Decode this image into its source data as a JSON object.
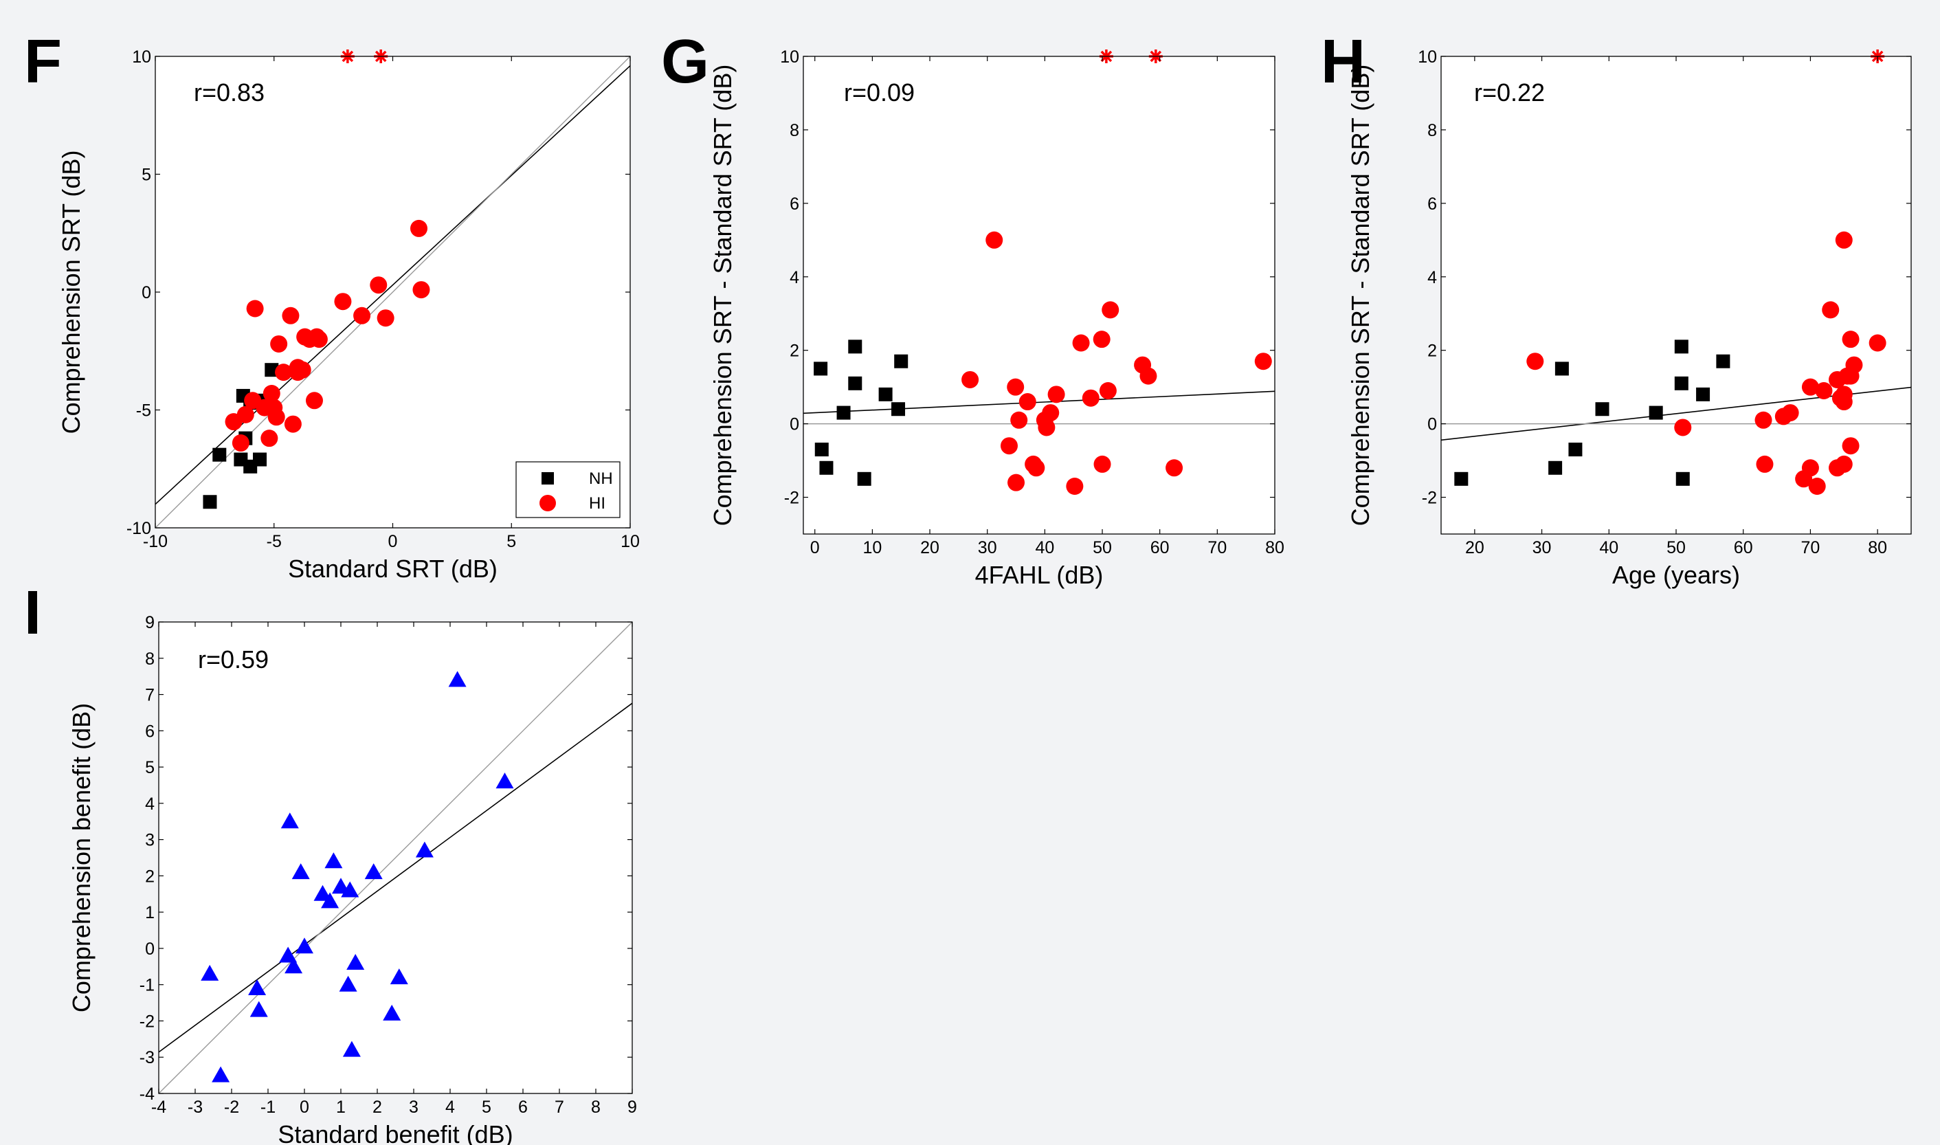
{
  "chart_data": [
    {
      "panel": "F",
      "type": "scatter",
      "xlabel": "Standard SRT (dB)",
      "ylabel": "Comprehension SRT (dB)",
      "xlim": [
        -10,
        10
      ],
      "ylim": [
        -10,
        10
      ],
      "xticks": [
        -10,
        -5,
        0,
        5,
        10
      ],
      "yticks": [
        -10,
        -5,
        0,
        5,
        10
      ],
      "annotation": "r=0.83",
      "legend": {
        "placement": "bottom-right",
        "entries": [
          "NH",
          "HI"
        ]
      },
      "colors": {
        "NH": "#000000",
        "HI": "#ff0000",
        "marker_star": "#ff0000"
      },
      "series": [
        {
          "name": "NH",
          "marker": "square",
          "color": "#000000",
          "x": [
            -7.7,
            -7.3,
            -6.4,
            -6.3,
            -6.2,
            -6.0,
            -6.0,
            -5.8,
            -5.6,
            -5.4,
            -5.1
          ],
          "y": [
            -8.9,
            -6.9,
            -7.1,
            -4.4,
            -6.2,
            -4.6,
            -7.4,
            -4.7,
            -7.1,
            -4.6,
            -3.3
          ]
        },
        {
          "name": "HI",
          "marker": "circle",
          "color": "#ff0000",
          "x": [
            -6.7,
            -6.4,
            -6.2,
            -5.9,
            -5.8,
            -5.4,
            -5.2,
            -5.1,
            -5.0,
            -4.9,
            -4.8,
            -4.6,
            -4.3,
            -4.2,
            -4.0,
            -4.0,
            -3.8,
            -3.7,
            -3.5,
            -3.3,
            -3.2,
            -3.1,
            -2.1,
            -1.3,
            -0.6,
            -0.3,
            1.1,
            1.2
          ],
          "y": [
            -5.5,
            -6.4,
            -5.2,
            -4.6,
            -0.7,
            -4.9,
            -6.2,
            -4.3,
            -4.9,
            -5.3,
            -2.2,
            -3.4,
            -1.0,
            -5.6,
            -3.4,
            -3.2,
            -3.3,
            -1.9,
            -2.0,
            -4.6,
            -1.9,
            -2.0,
            -0.4,
            -1.0,
            0.3,
            -1.1,
            2.7,
            0.1
          ]
        }
      ],
      "offscale_x": [
        -1.9,
        -0.5
      ],
      "lines": [
        {
          "kind": "regression",
          "slope": 0.93,
          "intercept": 0.3,
          "color": "#000000"
        },
        {
          "kind": "identity",
          "slope": 1.0,
          "intercept": 0.0,
          "color": "#9a9a9a"
        }
      ]
    },
    {
      "panel": "G",
      "type": "scatter",
      "xlabel": "4FAHL (dB)",
      "ylabel": "Comprehension SRT - Standard SRT (dB)",
      "xlim": [
        -2,
        80
      ],
      "ylim": [
        -3,
        10
      ],
      "xticks": [
        0,
        10,
        20,
        30,
        40,
        50,
        60,
        70,
        80
      ],
      "yticks": [
        -2,
        0,
        2,
        4,
        6,
        8,
        10
      ],
      "annotation": "r=0.09",
      "colors": {
        "NH": "#000000",
        "HI": "#ff0000",
        "marker_star": "#ff0000"
      },
      "series": [
        {
          "name": "NH",
          "marker": "square",
          "color": "#000000",
          "x": [
            1.0,
            1.2,
            2.0,
            5.0,
            7.0,
            7.0,
            8.6,
            12.3,
            14.5,
            15.0
          ],
          "y": [
            1.5,
            -0.7,
            -1.2,
            0.3,
            2.1,
            1.1,
            -1.5,
            0.8,
            0.4,
            1.7
          ]
        },
        {
          "name": "HI",
          "marker": "circle",
          "color": "#ff0000",
          "x": [
            27.0,
            31.2,
            33.8,
            34.9,
            35.0,
            35.5,
            37.0,
            38.0,
            38.5,
            40.0,
            40.3,
            41.0,
            42.0,
            45.2,
            46.3,
            48.0,
            49.9,
            50.0,
            51.0,
            51.4,
            57.0,
            58.0,
            62.5,
            78.0
          ],
          "y": [
            1.2,
            5.0,
            -0.6,
            1.0,
            -1.6,
            0.1,
            0.6,
            -1.1,
            -1.2,
            0.1,
            -0.1,
            0.3,
            0.8,
            -1.7,
            2.2,
            0.7,
            2.3,
            -1.1,
            0.9,
            3.1,
            1.6,
            1.3,
            -1.2,
            1.7
          ]
        }
      ],
      "offscale_x": [
        50.7,
        59.3
      ],
      "lines": [
        {
          "kind": "regression",
          "slope": 0.0073,
          "intercept": 0.3,
          "color": "#000000"
        },
        {
          "kind": "zero",
          "slope": 0.0,
          "intercept": 0.0,
          "color": "#9a9a9a"
        }
      ]
    },
    {
      "panel": "H",
      "type": "scatter",
      "xlabel": "Age (years)",
      "ylabel": "Comprehension SRT - Standard SRT (dB)",
      "xlim": [
        15,
        85
      ],
      "ylim": [
        -3,
        10
      ],
      "xticks": [
        20,
        30,
        40,
        50,
        60,
        70,
        80
      ],
      "yticks": [
        -2,
        0,
        2,
        4,
        6,
        8,
        10
      ],
      "annotation": "r=0.22",
      "colors": {
        "NH": "#000000",
        "HI": "#ff0000",
        "marker_star": "#ff0000"
      },
      "series": [
        {
          "name": "NH",
          "marker": "square",
          "color": "#000000",
          "x": [
            18.0,
            32.0,
            33.0,
            35.0,
            39.0,
            47.0,
            50.8,
            50.8,
            51.0,
            54.0,
            57.0
          ],
          "y": [
            -1.5,
            -1.2,
            1.5,
            -0.7,
            0.4,
            0.3,
            2.1,
            1.1,
            -1.5,
            0.8,
            1.7
          ]
        },
        {
          "name": "HI",
          "marker": "circle",
          "color": "#ff0000",
          "x": [
            29.0,
            51.0,
            63.0,
            63.2,
            66.0,
            67.0,
            69.0,
            70.0,
            70.0,
            71.0,
            72.0,
            73.0,
            74.0,
            74.0,
            74.5,
            75.0,
            75.0,
            75.0,
            75.0,
            75.5,
            76.0,
            76.0,
            76.0,
            76.5,
            80.0
          ],
          "y": [
            1.7,
            -0.1,
            0.1,
            -1.1,
            0.2,
            0.3,
            -1.5,
            1.0,
            -1.2,
            -1.7,
            0.9,
            3.1,
            1.2,
            -1.2,
            0.7,
            0.8,
            0.6,
            -1.1,
            5.0,
            1.3,
            2.3,
            1.3,
            -0.6,
            1.6,
            2.2
          ]
        }
      ],
      "offscale_x": [
        80.0
      ],
      "lines": [
        {
          "kind": "regression",
          "slope": 0.0205,
          "intercept": -0.75,
          "color": "#000000"
        },
        {
          "kind": "zero",
          "slope": 0.0,
          "intercept": 0.0,
          "color": "#9a9a9a"
        }
      ]
    },
    {
      "panel": "I",
      "type": "scatter",
      "xlabel": "Standard benefit (dB)",
      "ylabel": "Comprehension benefit (dB)",
      "xlim": [
        -4,
        9
      ],
      "ylim": [
        -4,
        9
      ],
      "xticks": [
        -4,
        -3,
        -2,
        -1,
        0,
        1,
        2,
        3,
        4,
        5,
        6,
        7,
        8,
        9
      ],
      "yticks": [
        -4,
        -3,
        -2,
        -1,
        0,
        1,
        2,
        3,
        4,
        5,
        6,
        7,
        8,
        9
      ],
      "annotation": "r=0.59",
      "colors": {
        "points": "#0000ff"
      },
      "series": [
        {
          "name": "",
          "marker": "triangle",
          "color": "#0000ff",
          "x": [
            -2.6,
            -2.3,
            -1.3,
            -1.25,
            -0.45,
            -0.4,
            -0.3,
            -0.1,
            0.0,
            0.5,
            0.7,
            0.8,
            1.0,
            1.2,
            1.25,
            1.3,
            1.4,
            1.9,
            2.4,
            2.6,
            3.3,
            4.2,
            5.5
          ],
          "y": [
            -0.7,
            -3.5,
            -1.1,
            -1.7,
            -0.2,
            3.5,
            -0.5,
            2.1,
            0.05,
            1.5,
            1.3,
            2.4,
            1.7,
            -1.0,
            1.6,
            -2.8,
            -0.4,
            2.1,
            -1.8,
            -0.8,
            2.7,
            7.4,
            4.6
          ]
        }
      ],
      "lines": [
        {
          "kind": "regression",
          "slope": 0.74,
          "intercept": 0.1,
          "color": "#000000"
        },
        {
          "kind": "identity",
          "slope": 1.0,
          "intercept": 0.0,
          "color": "#9a9a9a"
        }
      ]
    }
  ]
}
